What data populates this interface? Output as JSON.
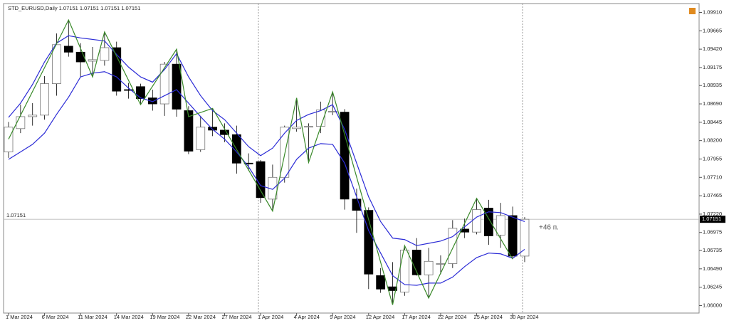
{
  "chart_data": {
    "type": "candlestick",
    "title": "STD_EURUSD,Daily  1.07151 1.07151 1.07151 1.07151",
    "categories": [
      "1 Mar 2024",
      null,
      null,
      "6 Mar 2024",
      null,
      null,
      "11 Mar 2024",
      null,
      null,
      "14 Mar 2024",
      null,
      null,
      "19 Mar 2024",
      null,
      null,
      "22 Mar 2024",
      null,
      null,
      "27 Mar 2024",
      null,
      null,
      "1 Apr 2024",
      null,
      null,
      "4 Apr 2024",
      null,
      null,
      "9 Apr 2024",
      null,
      null,
      "12 Apr 2024",
      null,
      null,
      "17 Apr 2024",
      null,
      null,
      "22 Apr 2024",
      null,
      null,
      "25 Apr 2024",
      null,
      null,
      "30 Apr 2024",
      null
    ],
    "open": [
      1.0805,
      1.0836,
      1.0852,
      1.0854,
      1.0896,
      1.0946,
      1.0938,
      1.0926,
      1.0927,
      1.0944,
      1.0888,
      1.0892,
      1.0877,
      1.0869,
      1.0922,
      1.086,
      1.0808,
      1.0838,
      1.0834,
      1.0828,
      1.079,
      1.0792,
      1.0742,
      1.0771,
      1.0836,
      1.0838,
      1.0839,
      1.0858,
      1.0858,
      1.0742,
      1.0727,
      1.064,
      1.0625,
      1.0618,
      1.0674,
      1.0641,
      1.0655,
      1.0656,
      1.0702,
      1.0698,
      1.073,
      1.0694,
      1.072,
      1.0666
    ],
    "high": [
      1.0845,
      1.0868,
      1.087,
      1.0906,
      1.0963,
      1.0981,
      1.095,
      1.0945,
      1.0965,
      1.0952,
      1.0897,
      1.0896,
      1.0888,
      1.0925,
      1.0942,
      1.0866,
      1.0853,
      1.0863,
      1.0843,
      1.084,
      1.0803,
      1.0794,
      1.0788,
      1.084,
      1.0877,
      1.0843,
      1.0872,
      1.0885,
      1.0862,
      1.0756,
      1.0731,
      1.065,
      1.0658,
      1.068,
      1.069,
      1.0677,
      1.0667,
      1.0714,
      1.0716,
      1.0743,
      1.0741,
      1.0737,
      1.0732,
      1.0718
    ],
    "low": [
      1.0797,
      1.083,
      1.084,
      1.0848,
      1.088,
      1.0932,
      1.0905,
      1.0905,
      1.092,
      1.088,
      1.0876,
      1.0868,
      1.086,
      1.0853,
      1.0852,
      1.0802,
      1.0805,
      1.0826,
      1.0818,
      1.0776,
      1.078,
      1.0737,
      1.0726,
      1.0764,
      1.0832,
      1.0791,
      1.083,
      1.0854,
      1.0728,
      1.0697,
      1.0622,
      1.0617,
      1.0601,
      1.0613,
      1.064,
      1.061,
      1.0642,
      1.065,
      1.069,
      1.0695,
      1.0681,
      1.0677,
      1.0662,
      1.0658
    ],
    "close": [
      1.0838,
      1.0852,
      1.0854,
      1.0896,
      1.0948,
      1.0938,
      1.0925,
      1.0928,
      1.0944,
      1.0886,
      1.0887,
      1.0876,
      1.0869,
      1.0922,
      1.0862,
      1.0806,
      1.0838,
      1.0834,
      1.0828,
      1.079,
      1.0789,
      1.0744,
      1.0771,
      1.0838,
      1.0838,
      1.0839,
      1.0861,
      1.0859,
      1.0742,
      1.0727,
      1.0642,
      1.0622,
      1.062,
      1.0674,
      1.0641,
      1.0659,
      1.0656,
      1.0703,
      1.0698,
      1.0728,
      1.0693,
      1.072,
      1.0666,
      1.07151
    ],
    "upper_band": {
      "color": "#2b2bd6",
      "values": [
        1.0851,
        1.087,
        1.0895,
        1.0925,
        1.095,
        1.096,
        1.0957,
        1.0955,
        1.0953,
        1.0935,
        1.0918,
        1.0905,
        1.0898,
        1.0915,
        1.0936,
        1.0905,
        1.088,
        1.086,
        1.0848,
        1.083,
        1.0812,
        1.08,
        1.081,
        1.083,
        1.0847,
        1.0855,
        1.086,
        1.0868,
        1.0835,
        1.079,
        1.0745,
        1.0712,
        1.069,
        1.0688,
        1.068,
        1.0683,
        1.0686,
        1.0692,
        1.0705,
        1.0718,
        1.0725,
        1.0724,
        1.0718,
        1.0712
      ]
    },
    "lower_band": {
      "color": "#2b2bd6",
      "values": [
        1.0795,
        1.0805,
        1.0815,
        1.083,
        1.0855,
        1.0878,
        1.0905,
        1.091,
        1.0912,
        1.0905,
        1.089,
        1.0877,
        1.0872,
        1.088,
        1.0888,
        1.087,
        1.0852,
        1.0835,
        1.0822,
        1.0805,
        1.0785,
        1.076,
        1.0755,
        1.077,
        1.0795,
        1.081,
        1.0816,
        1.0815,
        1.079,
        1.0745,
        1.07,
        1.067,
        1.064,
        1.0628,
        1.0627,
        1.063,
        1.063,
        1.0638,
        1.0652,
        1.0664,
        1.067,
        1.0669,
        1.0663,
        1.0675
      ]
    },
    "zigzag": {
      "color": "#3a8a2a",
      "x": [
        0,
        5,
        7,
        8,
        11,
        14,
        15,
        17,
        22,
        24,
        25,
        27,
        32,
        33,
        35,
        39,
        42
      ],
      "values": [
        1.0822,
        1.0981,
        1.0905,
        1.0965,
        1.0868,
        1.0942,
        1.0852,
        1.0863,
        1.0726,
        1.0877,
        1.0791,
        1.0885,
        1.0601,
        1.068,
        1.061,
        1.0743,
        1.0662
      ]
    },
    "current_price": {
      "value": 1.07151,
      "label": "1.07151"
    },
    "annotation": "+46 п.",
    "ylim": [
      1.059,
      1.1
    ],
    "yticks": [
      {
        "value": 1.0991,
        "label": "1.09910"
      },
      {
        "value": 1.09665,
        "label": "1.09665"
      },
      {
        "value": 1.0942,
        "label": "1.09420"
      },
      {
        "value": 1.09175,
        "label": "1.09175"
      },
      {
        "value": 1.08935,
        "label": "1.08935"
      },
      {
        "value": 1.0869,
        "label": "1.08690"
      },
      {
        "value": 1.08445,
        "label": "1.08445"
      },
      {
        "value": 1.082,
        "label": "1.08200"
      },
      {
        "value": 1.07955,
        "label": "1.07955"
      },
      {
        "value": 1.0771,
        "label": "1.07710"
      },
      {
        "value": 1.07465,
        "label": "1.07465"
      },
      {
        "value": 1.0722,
        "label": "1.07220"
      },
      {
        "value": 1.06975,
        "label": "1.06975"
      },
      {
        "value": 1.06735,
        "label": "1.06735"
      },
      {
        "value": 1.0649,
        "label": "1.06490"
      },
      {
        "value": 1.06245,
        "label": "1.06245"
      },
      {
        "value": 1.06,
        "label": "1.06000"
      }
    ]
  }
}
